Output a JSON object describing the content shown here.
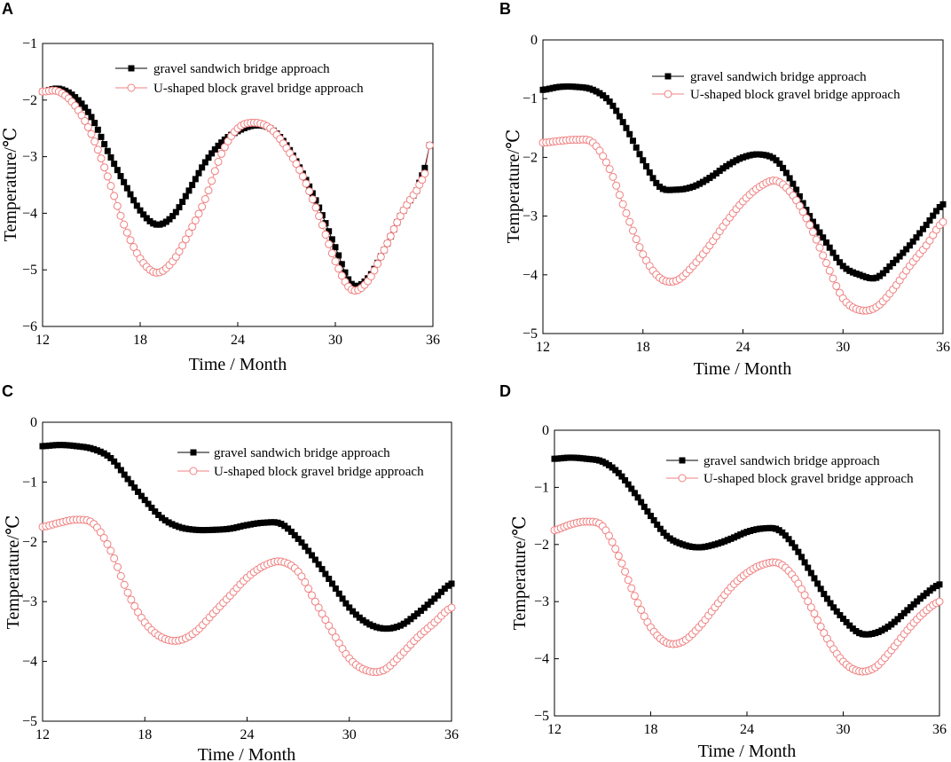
{
  "figure": {
    "series_styles": [
      {
        "name": "gravel sandwich bridge approach",
        "color": "#000000",
        "marker": "square-filled"
      },
      {
        "name": "U-shaped block gravel bridge approach",
        "color": "#f08080",
        "marker": "circle-open"
      }
    ]
  },
  "chart_data": [
    {
      "panel": "A",
      "type": "line",
      "xlabel": "Time / Month",
      "ylabel": "Temperature/℃",
      "xlim": [
        12,
        36
      ],
      "ylim": [
        -6,
        -1
      ],
      "xticks": [
        12,
        18,
        24,
        30,
        36
      ],
      "yticks": [
        -1,
        -2,
        -3,
        -4,
        -5,
        -6
      ],
      "legend": {
        "position": "top-center",
        "entries": [
          "gravel sandwich bridge approach",
          "U-shaped block gravel bridge approach"
        ]
      },
      "series": [
        {
          "name": "gravel sandwich bridge approach",
          "x": [
            12,
            13,
            14,
            15,
            16,
            17,
            18,
            19,
            20,
            21,
            22,
            23,
            24,
            25,
            26,
            27,
            28,
            29,
            30,
            31,
            32,
            33,
            34,
            35,
            35.5,
            35.8
          ],
          "y": [
            -1.85,
            -1.8,
            -1.95,
            -2.3,
            -2.9,
            -3.45,
            -3.95,
            -4.2,
            -4.05,
            -3.6,
            -3.1,
            -2.75,
            -2.55,
            -2.45,
            -2.5,
            -2.8,
            -3.3,
            -3.9,
            -4.6,
            -5.25,
            -5.15,
            -4.65,
            -4.05,
            -3.6,
            -3.2,
            -2.8
          ]
        },
        {
          "name": "U-shaped block gravel bridge approach",
          "x": [
            12,
            13,
            14,
            15,
            16,
            17,
            18,
            19,
            20,
            21,
            22,
            23,
            24,
            25,
            26,
            27,
            28,
            29,
            30,
            31,
            32,
            33,
            34,
            35,
            35.5,
            35.8
          ],
          "y": [
            -1.85,
            -1.85,
            -2.1,
            -2.6,
            -3.35,
            -4.2,
            -4.8,
            -5.05,
            -4.85,
            -4.35,
            -3.75,
            -2.95,
            -2.5,
            -2.4,
            -2.5,
            -2.85,
            -3.35,
            -4.05,
            -4.85,
            -5.35,
            -5.2,
            -4.65,
            -4.05,
            -3.6,
            -3.3,
            -2.8
          ]
        }
      ]
    },
    {
      "panel": "B",
      "type": "line",
      "xlabel": "Time / Month",
      "ylabel": "Temperature/℃",
      "xlim": [
        12,
        36
      ],
      "ylim": [
        -5,
        0
      ],
      "xticks": [
        12,
        18,
        24,
        30,
        36
      ],
      "yticks": [
        0,
        -1,
        -2,
        -3,
        -4,
        -5
      ],
      "legend": {
        "position": "top-center",
        "entries": [
          "gravel sandwich bridge approach",
          "U-shaped block gravel bridge approach"
        ]
      },
      "series": [
        {
          "name": "gravel sandwich bridge approach",
          "x": [
            12,
            13,
            14,
            15,
            16,
            17,
            18,
            19,
            20,
            21,
            22,
            23,
            24,
            25,
            26,
            27,
            28,
            29,
            30,
            31,
            32,
            33,
            34,
            35,
            36
          ],
          "y": [
            -0.85,
            -0.8,
            -0.8,
            -0.85,
            -1.05,
            -1.5,
            -2.05,
            -2.5,
            -2.55,
            -2.5,
            -2.35,
            -2.15,
            -2.0,
            -1.95,
            -2.05,
            -2.45,
            -3.0,
            -3.45,
            -3.85,
            -4.0,
            -4.05,
            -3.8,
            -3.5,
            -3.15,
            -2.8
          ]
        },
        {
          "name": "U-shaped block gravel bridge approach",
          "x": [
            12,
            13,
            14,
            15,
            16,
            17,
            18,
            19,
            20,
            21,
            22,
            23,
            24,
            25,
            26,
            27,
            28,
            29,
            30,
            31,
            32,
            33,
            34,
            35,
            36
          ],
          "y": [
            -1.75,
            -1.72,
            -1.7,
            -1.75,
            -2.2,
            -2.95,
            -3.65,
            -4.05,
            -4.1,
            -3.85,
            -3.5,
            -3.1,
            -2.75,
            -2.5,
            -2.4,
            -2.65,
            -3.15,
            -3.8,
            -4.4,
            -4.6,
            -4.55,
            -4.25,
            -3.85,
            -3.5,
            -3.1
          ]
        }
      ]
    },
    {
      "panel": "C",
      "type": "line",
      "xlabel": "Time / Month",
      "ylabel": "Temperature/℃",
      "xlim": [
        12,
        36
      ],
      "ylim": [
        -5,
        0
      ],
      "xticks": [
        12,
        18,
        24,
        30,
        36
      ],
      "yticks": [
        0,
        -1,
        -2,
        -3,
        -4,
        -5
      ],
      "legend": {
        "position": "top-right",
        "entries": [
          "gravel sandwich bridge approach",
          "U-shaped block gravel bridge approach"
        ]
      },
      "series": [
        {
          "name": "gravel sandwich bridge approach",
          "x": [
            12,
            13,
            14,
            15,
            16,
            17,
            18,
            19,
            20,
            21,
            22,
            23,
            24,
            25,
            26,
            27,
            28,
            29,
            30,
            31,
            32,
            33,
            34,
            35,
            36
          ],
          "y": [
            -0.4,
            -0.38,
            -0.4,
            -0.45,
            -0.6,
            -0.95,
            -1.3,
            -1.6,
            -1.75,
            -1.8,
            -1.8,
            -1.78,
            -1.72,
            -1.68,
            -1.7,
            -1.95,
            -2.3,
            -2.7,
            -3.1,
            -3.35,
            -3.45,
            -3.4,
            -3.2,
            -2.95,
            -2.7
          ]
        },
        {
          "name": "U-shaped block gravel bridge approach",
          "x": [
            12,
            13,
            14,
            15,
            16,
            17,
            18,
            19,
            20,
            21,
            22,
            23,
            24,
            25,
            26,
            27,
            28,
            29,
            30,
            31,
            32,
            33,
            34,
            35,
            36
          ],
          "y": [
            -1.75,
            -1.68,
            -1.63,
            -1.7,
            -2.15,
            -2.85,
            -3.35,
            -3.6,
            -3.65,
            -3.5,
            -3.2,
            -2.9,
            -2.6,
            -2.4,
            -2.33,
            -2.5,
            -3.0,
            -3.5,
            -3.95,
            -4.15,
            -4.15,
            -3.9,
            -3.6,
            -3.35,
            -3.1
          ]
        }
      ]
    },
    {
      "panel": "D",
      "type": "line",
      "xlabel": "Time / Month",
      "ylabel": "Temperature/℃",
      "xlim": [
        12,
        36
      ],
      "ylim": [
        -5,
        0
      ],
      "xticks": [
        12,
        18,
        24,
        30,
        36
      ],
      "yticks": [
        0,
        -1,
        -2,
        -3,
        -4,
        -5
      ],
      "legend": {
        "position": "top-right",
        "entries": [
          "gravel sandwich bridge approach",
          "U-shaped block gravel bridge approach"
        ]
      },
      "series": [
        {
          "name": "gravel sandwich bridge approach",
          "x": [
            12,
            13,
            14,
            15,
            16,
            17,
            18,
            19,
            20,
            21,
            22,
            23,
            24,
            25,
            26,
            27,
            28,
            29,
            30,
            31,
            32,
            33,
            34,
            35,
            36
          ],
          "y": [
            -0.5,
            -0.48,
            -0.5,
            -0.55,
            -0.75,
            -1.1,
            -1.5,
            -1.85,
            -2.0,
            -2.05,
            -2.0,
            -1.9,
            -1.78,
            -1.72,
            -1.75,
            -2.05,
            -2.5,
            -2.95,
            -3.3,
            -3.55,
            -3.55,
            -3.4,
            -3.15,
            -2.9,
            -2.7
          ]
        },
        {
          "name": "U-shaped block gravel bridge approach",
          "x": [
            12,
            13,
            14,
            15,
            16,
            17,
            18,
            19,
            20,
            21,
            22,
            23,
            24,
            25,
            26,
            27,
            28,
            29,
            30,
            31,
            32,
            33,
            34,
            35,
            36
          ],
          "y": [
            -1.75,
            -1.65,
            -1.6,
            -1.68,
            -2.2,
            -2.9,
            -3.45,
            -3.72,
            -3.7,
            -3.45,
            -3.1,
            -2.75,
            -2.5,
            -2.35,
            -2.33,
            -2.6,
            -3.1,
            -3.65,
            -4.05,
            -4.22,
            -4.15,
            -3.85,
            -3.5,
            -3.2,
            -3.0
          ]
        }
      ]
    }
  ]
}
